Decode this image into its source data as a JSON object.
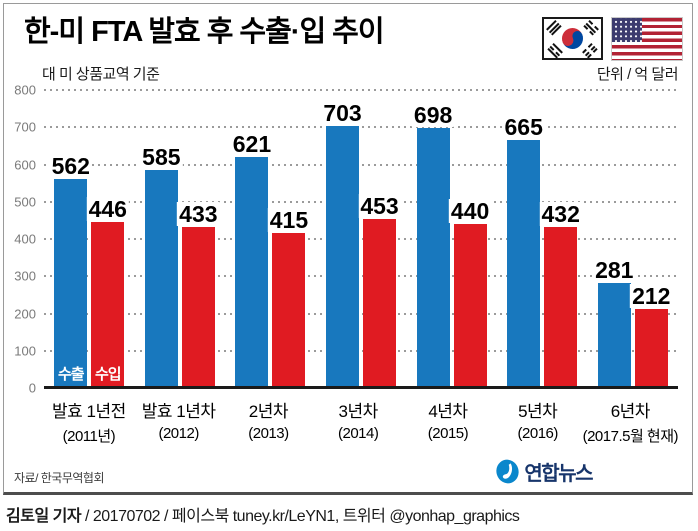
{
  "header": {
    "title": "한-미 FTA 발효 후 수출·입 추이"
  },
  "notes": {
    "basis": "대 미 상품교역 기준",
    "unit": "단위 / 억 달러"
  },
  "chart_data": {
    "type": "bar",
    "title": "한-미 FTA 발효 후 수출·입 추이",
    "categories": [
      "발효 1년전",
      "발효 1년차",
      "2년차",
      "3년차",
      "4년차",
      "5년차",
      "6년차"
    ],
    "category_sublabels": [
      "(2011년)",
      "(2012)",
      "(2013)",
      "(2014)",
      "(2015)",
      "(2016)",
      "(2017.5월 현재)"
    ],
    "series": [
      {
        "name": "수출",
        "color": "#1878be",
        "values": [
          562,
          585,
          621,
          703,
          698,
          665,
          281
        ]
      },
      {
        "name": "수입",
        "color": "#e01b22",
        "values": [
          446,
          433,
          415,
          453,
          440,
          432,
          212
        ]
      }
    ],
    "ylim": [
      0,
      800
    ],
    "ytick_step": 100,
    "grid": "horizontal-dotted",
    "legend_position": "inside-first-bars-bottom"
  },
  "icons": {
    "korea_flag": "korea-flag",
    "usa_flag": "usa-flag",
    "yonhap_swirl": "yonhap-swirl"
  },
  "source": {
    "label": "자료/ 한국무역협회"
  },
  "logo": {
    "text": "연합뉴스"
  },
  "footer": {
    "author": "김토일 기자",
    "rest": " / 20170702 / 페이스북 tuney.kr/LeYN1, 트위터 @yonhap_graphics"
  }
}
